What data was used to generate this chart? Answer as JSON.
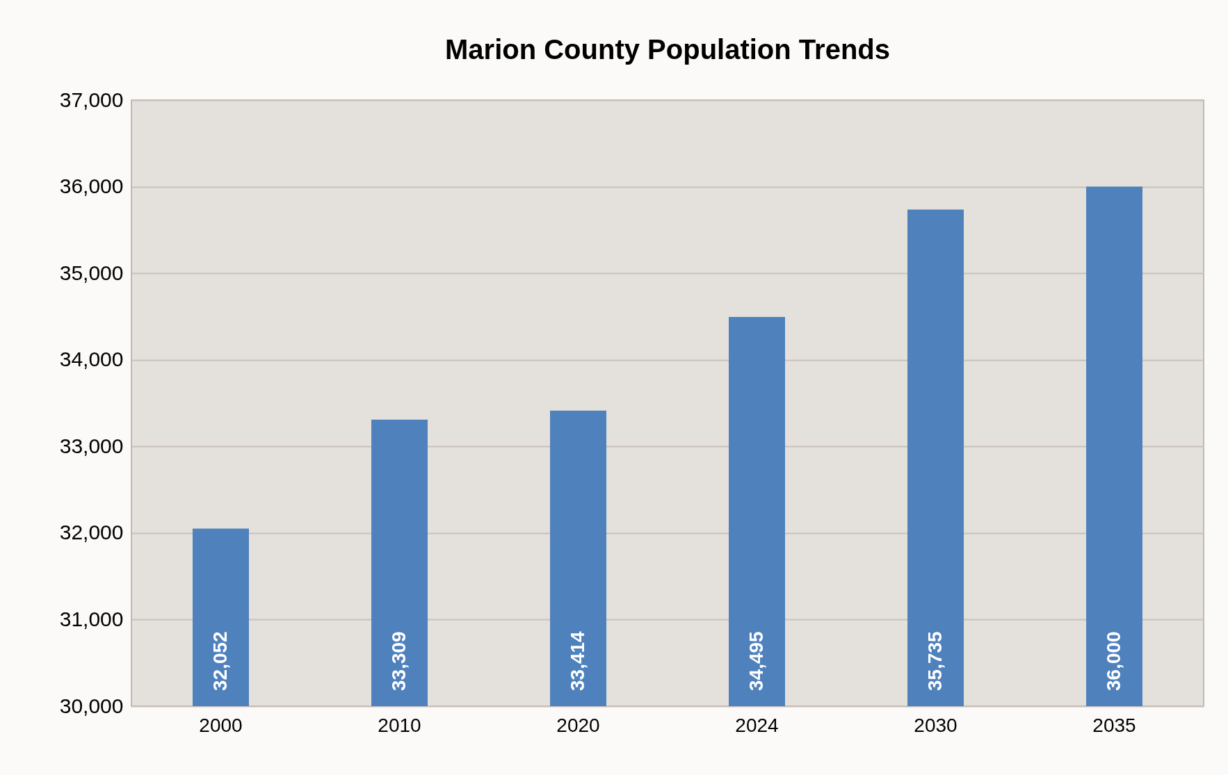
{
  "chart_data": {
    "type": "bar",
    "title": "Marion County Population Trends",
    "categories": [
      "2000",
      "2010",
      "2020",
      "2024",
      "2030",
      "2035"
    ],
    "values": [
      32052,
      33309,
      33414,
      34495,
      35735,
      36000
    ],
    "color": "#4f81bd",
    "ylim": [
      30000,
      37000
    ],
    "yticks": [
      {
        "value": 30000,
        "label": "30,000"
      },
      {
        "value": 31000,
        "label": "31,000"
      },
      {
        "value": 32000,
        "label": "32,000"
      },
      {
        "value": 33000,
        "label": "33,000"
      },
      {
        "value": 34000,
        "label": "34,000"
      },
      {
        "value": 35000,
        "label": "35,000"
      },
      {
        "value": 36000,
        "label": "36,000"
      },
      {
        "value": 37000,
        "label": "37,000"
      }
    ],
    "value_labels": [
      "32,052",
      "33,309",
      "33,414",
      "34,495",
      "35,735",
      "36,000"
    ],
    "grid": true
  }
}
